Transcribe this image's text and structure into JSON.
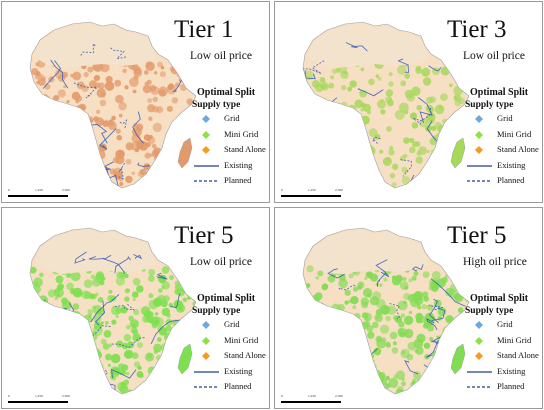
{
  "panels": [
    {
      "tier": "Tier 1",
      "price": "Low oil price",
      "fill_color": "#e39a6a"
    },
    {
      "tier": "Tier 3",
      "price": "Low oil price",
      "fill_color": "#a6d85a"
    },
    {
      "tier": "Tier 5",
      "price": "Low oil price",
      "fill_color": "#7ee04e"
    },
    {
      "tier": "Tier 5",
      "price": "High oil price",
      "fill_color": "#82dc52"
    }
  ],
  "legend": {
    "title": "Optimal Split",
    "subtitle": "Supply type",
    "items": [
      {
        "label": "Grid",
        "color": "#6fa8dc",
        "kind": "diamond"
      },
      {
        "label": "Mini Grid",
        "color": "#8fe046",
        "kind": "diamond"
      },
      {
        "label": "Stand Alone",
        "color": "#f59a23",
        "kind": "diamond"
      },
      {
        "label": "Existing",
        "color": "#1f3f8f",
        "kind": "solid-line"
      },
      {
        "label": "Planned",
        "color": "#1f3f8f",
        "kind": "dashed-line"
      }
    ]
  },
  "scale": {
    "ticks": [
      "0",
      "1,250",
      "2,500"
    ]
  },
  "colors": {
    "land": "#f7dfc4",
    "sahara": "#f4e3cc",
    "water": "#ffffff",
    "grid_line": "#2c55b8"
  }
}
